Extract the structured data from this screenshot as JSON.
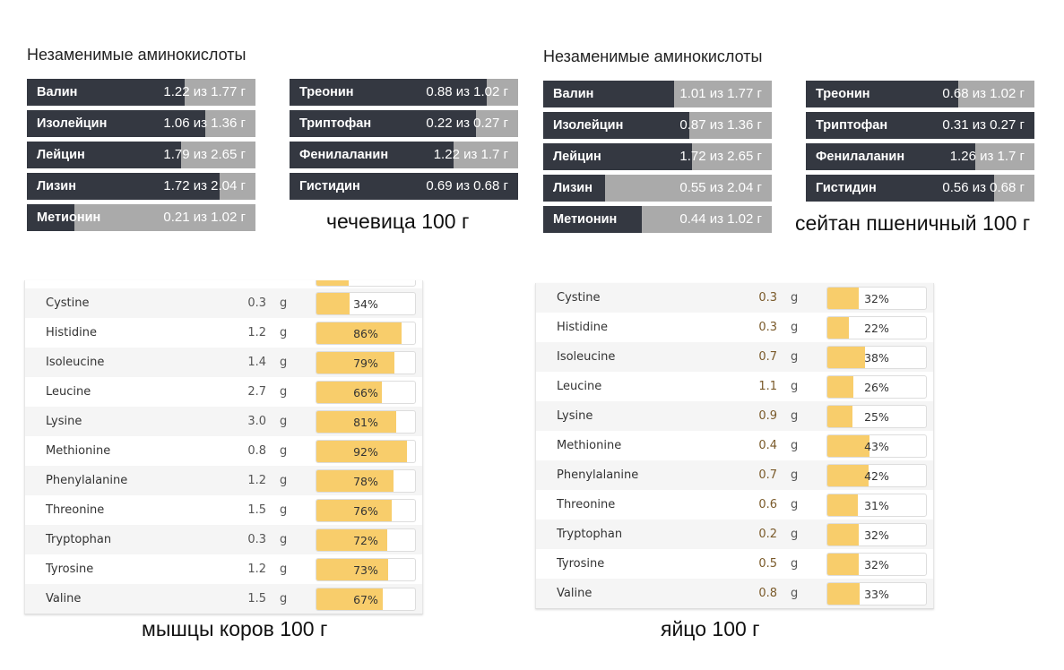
{
  "panels": [
    {
      "title": "Незаменимые аминокислоты",
      "caption": "чечевица 100 г",
      "left": [
        {
          "name": "Валин",
          "value": 1.22,
          "max": 1.77,
          "text": "1.22 из 1.77 г"
        },
        {
          "name": "Изолейцин",
          "value": 1.06,
          "max": 1.36,
          "text": "1.06 из 1.36 г"
        },
        {
          "name": "Лейцин",
          "value": 1.79,
          "max": 2.65,
          "text": "1.79 из 2.65 г"
        },
        {
          "name": "Лизин",
          "value": 1.72,
          "max": 2.04,
          "text": "1.72 из 2.04 г"
        },
        {
          "name": "Метионин",
          "value": 0.21,
          "max": 1.02,
          "text": "0.21 из 1.02 г"
        }
      ],
      "right": [
        {
          "name": "Треонин",
          "value": 0.88,
          "max": 1.02,
          "text": "0.88 из 1.02 г"
        },
        {
          "name": "Триптофан",
          "value": 0.22,
          "max": 0.27,
          "text": "0.22 из 0.27 г"
        },
        {
          "name": "Фенилаланин",
          "value": 1.22,
          "max": 1.7,
          "text": "1.22 из 1.7 г"
        },
        {
          "name": "Гистидин",
          "value": 0.69,
          "max": 0.68,
          "text": "0.69 из 0.68 г"
        }
      ]
    },
    {
      "title": "Незаменимые аминокислоты",
      "caption": "сейтан пшеничный 100 г",
      "left": [
        {
          "name": "Валин",
          "value": 1.01,
          "max": 1.77,
          "text": "1.01 из 1.77 г"
        },
        {
          "name": "Изолейцин",
          "value": 0.87,
          "max": 1.36,
          "text": "0.87 из 1.36 г"
        },
        {
          "name": "Лейцин",
          "value": 1.72,
          "max": 2.65,
          "text": "1.72 из 2.65 г"
        },
        {
          "name": "Лизин",
          "value": 0.55,
          "max": 2.04,
          "text": "0.55 из 2.04 г"
        },
        {
          "name": "Метионин",
          "value": 0.44,
          "max": 1.02,
          "text": "0.44 из 1.02 г"
        }
      ],
      "right": [
        {
          "name": "Треонин",
          "value": 0.68,
          "max": 1.02,
          "text": "0.68 из 1.02 г"
        },
        {
          "name": "Триптофан",
          "value": 0.31,
          "max": 0.27,
          "text": "0.31 из 0.27 г"
        },
        {
          "name": "Фенилаланин",
          "value": 1.26,
          "max": 1.7,
          "text": "1.26 из 1.7 г"
        },
        {
          "name": "Гистидин",
          "value": 0.56,
          "max": 0.68,
          "text": "0.56 из 0.68 г"
        }
      ]
    }
  ],
  "tables": [
    {
      "caption": "мышцы коров 100 г",
      "unit": "g",
      "rows": [
        [
          "Cystine",
          "0.3",
          34
        ],
        [
          "Histidine",
          "1.2",
          86
        ],
        [
          "Isoleucine",
          "1.4",
          79
        ],
        [
          "Leucine",
          "2.7",
          66
        ],
        [
          "Lysine",
          "3.0",
          81
        ],
        [
          "Methionine",
          "0.8",
          92
        ],
        [
          "Phenylalanine",
          "1.2",
          78
        ],
        [
          "Threonine",
          "1.5",
          76
        ],
        [
          "Tryptophan",
          "0.3",
          72
        ],
        [
          "Tyrosine",
          "1.2",
          73
        ],
        [
          "Valine",
          "1.5",
          67
        ]
      ]
    },
    {
      "caption": "яйцо 100 г",
      "unit": "g",
      "rows": [
        [
          "Cystine",
          "0.3",
          32
        ],
        [
          "Histidine",
          "0.3",
          22
        ],
        [
          "Isoleucine",
          "0.7",
          38
        ],
        [
          "Leucine",
          "1.1",
          26
        ],
        [
          "Lysine",
          "0.9",
          25
        ],
        [
          "Methionine",
          "0.4",
          43
        ],
        [
          "Phenylalanine",
          "0.7",
          42
        ],
        [
          "Threonine",
          "0.6",
          31
        ],
        [
          "Tryptophan",
          "0.2",
          32
        ],
        [
          "Tyrosine",
          "0.5",
          32
        ],
        [
          "Valine",
          "0.8",
          33
        ]
      ]
    }
  ]
}
